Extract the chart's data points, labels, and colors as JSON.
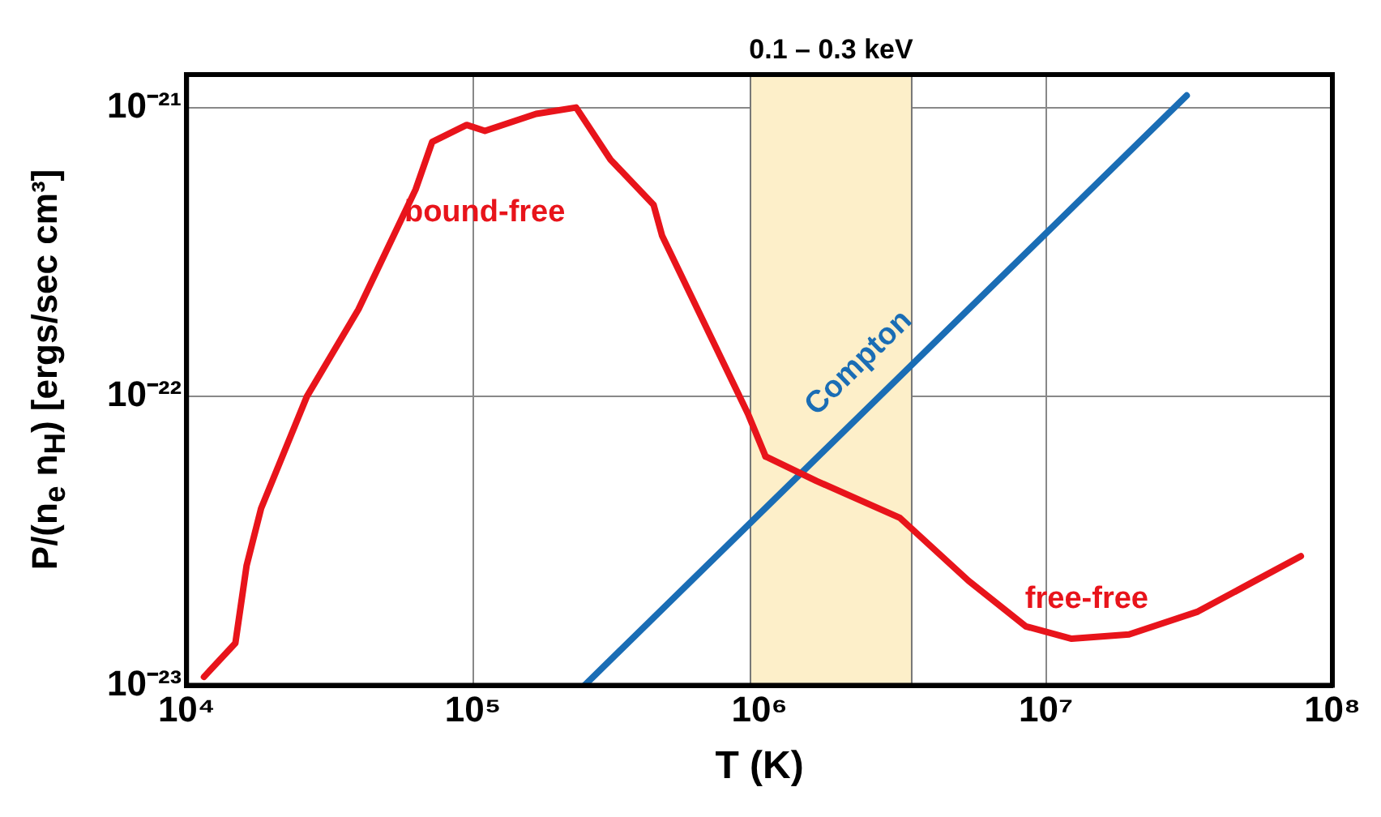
{
  "chart_data": {
    "type": "line",
    "xlabel": "T (K)",
    "ylabel": "P/(n$_{e}$ n$_{H}$) [ergs/sec cm³]",
    "log": "xy",
    "grid": true,
    "legend": false,
    "marker": "none",
    "line_style": "solid",
    "xlim": [
      10000,
      100000000
    ],
    "xticks": [
      {
        "value": 10000,
        "label": "10⁴"
      },
      {
        "value": 100000,
        "label": "10⁵"
      },
      {
        "value": 1000000,
        "label": "10⁶"
      },
      {
        "value": 10000000,
        "label": "10⁷"
      },
      {
        "value": 100000000,
        "label": "10⁸"
      }
    ],
    "ylim": [
      1e-23,
      1.3e-21
    ],
    "yticks": [
      {
        "value": 1e-23,
        "label": "10⁻²³"
      },
      {
        "value": 1e-22,
        "label": "10⁻²²"
      },
      {
        "value": 1e-21,
        "label": "10⁻²¹"
      }
    ],
    "bands": [
      {
        "axis": "x",
        "from": 930000,
        "to": 3400000,
        "label": "0.1 – 0.3 keV",
        "color": "#fdefc9"
      }
    ],
    "series": [
      {
        "name": "bound-free",
        "color": "#e8141b",
        "x": [
          11500,
          14800,
          16200,
          18200,
          26300,
          39800,
          63000,
          72000,
          95000,
          110000,
          166000,
          229000,
          302000,
          427000,
          457000,
          912000,
          1050000
        ],
        "values": [
          1.07e-23,
          1.4e-23,
          2.6e-23,
          4.1e-23,
          1e-22,
          2e-22,
          5.2e-22,
          7.6e-22,
          8.7e-22,
          8.3e-22,
          9.5e-22,
          1e-21,
          6.6e-22,
          4.6e-22,
          3.6e-22,
          8.7e-23,
          6.2e-23
        ]
      },
      {
        "name": "free-free",
        "color": "#e8141b",
        "x": [
          1050000,
          1580000,
          3090000,
          5370000,
          8510000,
          12300000,
          19500000,
          33900000,
          53700000,
          77600000
        ],
        "values": [
          6.2e-23,
          5.1e-23,
          3.8e-23,
          2.3e-23,
          1.6e-23,
          1.45e-23,
          1.5e-23,
          1.8e-23,
          2.3e-23,
          2.8e-23
        ]
      },
      {
        "name": "Compton",
        "color": "#1a6db5",
        "x": [
          245000,
          31000000
        ],
        "values": [
          1e-23,
          1.1e-21
        ]
      }
    ]
  }
}
